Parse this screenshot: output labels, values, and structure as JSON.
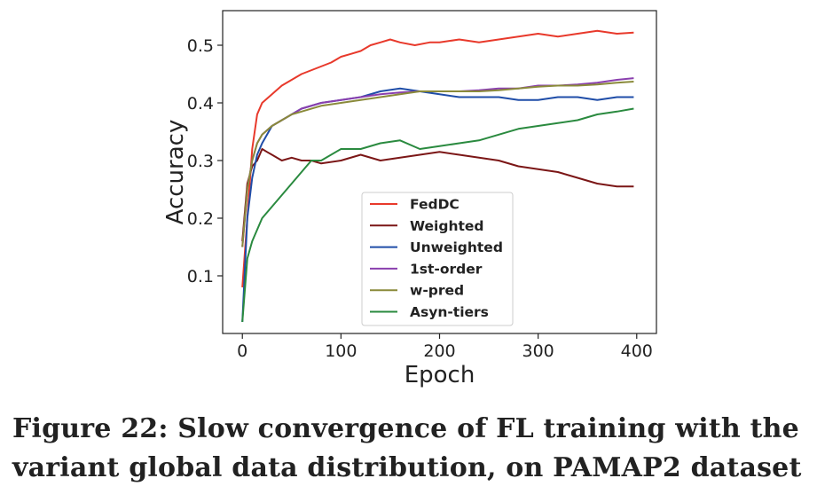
{
  "caption": {
    "line1": "Figure 22: Slow convergence of FL training with the",
    "line2": "variant global data distribution, on PAMAP2 dataset"
  },
  "chart_data": {
    "type": "line",
    "xlabel": "Epoch",
    "ylabel": "Accuracy",
    "xlim": [
      -20,
      420
    ],
    "ylim": [
      0.0,
      0.56
    ],
    "xticks": [
      0,
      100,
      200,
      300,
      400
    ],
    "yticks": [
      0.1,
      0.2,
      0.3,
      0.4,
      0.5
    ],
    "xtick_labels": [
      "0",
      "100",
      "200",
      "300",
      "400"
    ],
    "ytick_labels": [
      "0.1",
      "0.2",
      "0.3",
      "0.4",
      "0.5"
    ],
    "grid": false,
    "legend_position": "lower-center",
    "series": [
      {
        "name": "FedDC",
        "color": "#e8392b",
        "x": [
          0,
          5,
          10,
          15,
          20,
          30,
          40,
          50,
          60,
          75,
          90,
          100,
          110,
          120,
          130,
          140,
          150,
          160,
          175,
          190,
          200,
          220,
          240,
          260,
          280,
          300,
          320,
          340,
          360,
          380,
          397
        ],
        "y": [
          0.08,
          0.2,
          0.32,
          0.38,
          0.4,
          0.415,
          0.43,
          0.44,
          0.45,
          0.46,
          0.47,
          0.48,
          0.485,
          0.49,
          0.5,
          0.505,
          0.51,
          0.505,
          0.5,
          0.505,
          0.505,
          0.51,
          0.505,
          0.51,
          0.515,
          0.52,
          0.515,
          0.52,
          0.525,
          0.52,
          0.522
        ]
      },
      {
        "name": "Weighted",
        "color": "#7b1616",
        "x": [
          0,
          5,
          10,
          15,
          20,
          25,
          30,
          40,
          50,
          60,
          70,
          80,
          100,
          120,
          140,
          160,
          180,
          200,
          220,
          240,
          260,
          280,
          300,
          320,
          340,
          360,
          380,
          397
        ],
        "y": [
          0.16,
          0.26,
          0.29,
          0.3,
          0.32,
          0.315,
          0.31,
          0.3,
          0.305,
          0.3,
          0.3,
          0.295,
          0.3,
          0.31,
          0.3,
          0.305,
          0.31,
          0.315,
          0.31,
          0.305,
          0.3,
          0.29,
          0.285,
          0.28,
          0.27,
          0.26,
          0.255,
          0.255
        ]
      },
      {
        "name": "Unweighted",
        "color": "#1f4da8",
        "x": [
          0,
          5,
          10,
          15,
          20,
          30,
          40,
          50,
          60,
          80,
          100,
          120,
          140,
          160,
          180,
          200,
          220,
          240,
          260,
          280,
          300,
          320,
          340,
          360,
          380,
          397
        ],
        "y": [
          0.02,
          0.2,
          0.27,
          0.31,
          0.33,
          0.36,
          0.37,
          0.38,
          0.39,
          0.4,
          0.405,
          0.41,
          0.42,
          0.425,
          0.42,
          0.415,
          0.41,
          0.41,
          0.41,
          0.405,
          0.405,
          0.41,
          0.41,
          0.405,
          0.41,
          0.41
        ]
      },
      {
        "name": "1st-order",
        "color": "#8a3fae",
        "x": [
          0,
          5,
          10,
          15,
          20,
          30,
          40,
          50,
          60,
          80,
          100,
          120,
          140,
          160,
          180,
          200,
          220,
          240,
          260,
          280,
          300,
          320,
          340,
          360,
          380,
          397
        ],
        "y": [
          0.15,
          0.25,
          0.3,
          0.33,
          0.345,
          0.36,
          0.37,
          0.38,
          0.39,
          0.4,
          0.405,
          0.41,
          0.415,
          0.418,
          0.42,
          0.42,
          0.42,
          0.422,
          0.425,
          0.425,
          0.43,
          0.43,
          0.432,
          0.435,
          0.44,
          0.443
        ]
      },
      {
        "name": "w-pred",
        "color": "#8a8a3a",
        "x": [
          0,
          5,
          10,
          15,
          20,
          30,
          40,
          50,
          60,
          80,
          100,
          120,
          140,
          160,
          180,
          200,
          220,
          240,
          260,
          280,
          300,
          320,
          340,
          360,
          380,
          397
        ],
        "y": [
          0.15,
          0.25,
          0.3,
          0.33,
          0.345,
          0.36,
          0.37,
          0.38,
          0.385,
          0.395,
          0.4,
          0.405,
          0.41,
          0.415,
          0.42,
          0.42,
          0.42,
          0.42,
          0.422,
          0.425,
          0.428,
          0.43,
          0.43,
          0.432,
          0.435,
          0.437
        ]
      },
      {
        "name": "Asyn-tiers",
        "color": "#2a8a3f",
        "x": [
          0,
          5,
          10,
          15,
          20,
          30,
          40,
          50,
          60,
          70,
          80,
          100,
          120,
          140,
          160,
          180,
          200,
          220,
          240,
          260,
          280,
          300,
          320,
          340,
          360,
          380,
          397
        ],
        "y": [
          0.02,
          0.13,
          0.16,
          0.18,
          0.2,
          0.22,
          0.24,
          0.26,
          0.28,
          0.3,
          0.3,
          0.32,
          0.32,
          0.33,
          0.335,
          0.32,
          0.325,
          0.33,
          0.335,
          0.345,
          0.355,
          0.36,
          0.365,
          0.37,
          0.38,
          0.385,
          0.39
        ]
      }
    ]
  }
}
